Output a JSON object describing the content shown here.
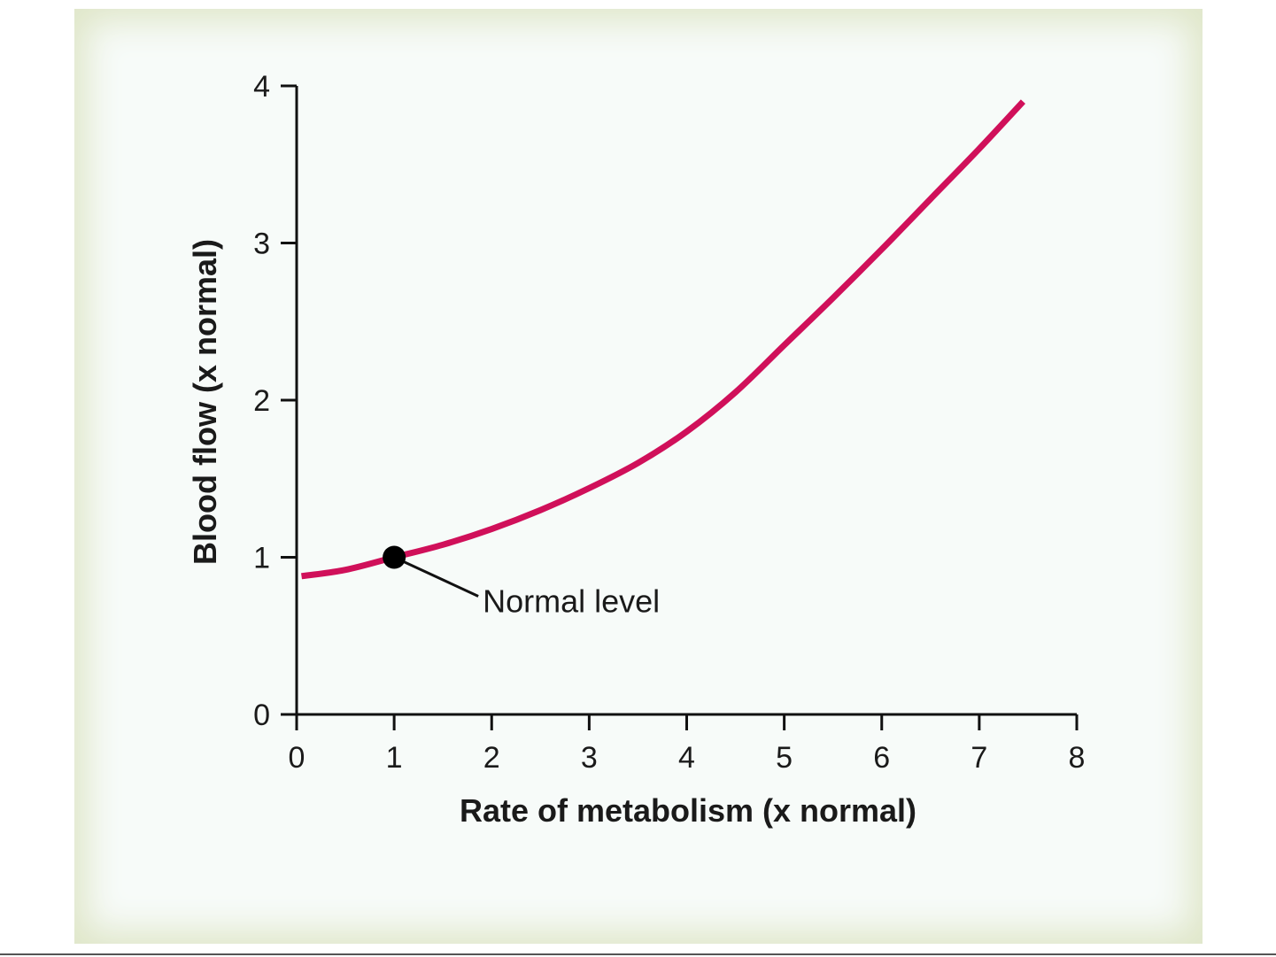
{
  "chart_data": {
    "type": "line",
    "xlabel": "Rate of metabolism (x normal)",
    "ylabel": "Blood flow (x normal)",
    "xlim": [
      0,
      8
    ],
    "ylim": [
      0,
      4
    ],
    "x_ticks": [
      "0",
      "1",
      "2",
      "3",
      "4",
      "5",
      "6",
      "7",
      "8"
    ],
    "y_ticks": [
      "0",
      "1",
      "2",
      "3",
      "4"
    ],
    "grid": false,
    "series": [
      {
        "color": "#d0105a",
        "x": [
          0.05,
          0.5,
          1.0,
          1.5,
          2.0,
          2.5,
          3.0,
          3.5,
          4.0,
          4.5,
          5.0,
          5.5,
          6.0,
          6.5,
          7.0,
          7.45
        ],
        "y": [
          0.88,
          0.92,
          1.0,
          1.08,
          1.18,
          1.3,
          1.44,
          1.6,
          1.8,
          2.05,
          2.35,
          2.65,
          2.96,
          3.28,
          3.6,
          3.9
        ]
      }
    ],
    "annotations": [
      {
        "text": "Normal level",
        "x": 1.0,
        "y": 1.0
      }
    ]
  }
}
